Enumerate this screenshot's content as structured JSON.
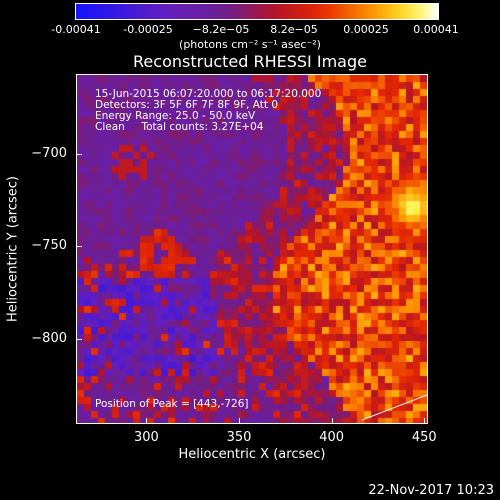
{
  "colorbar": {
    "ticks": [
      "-0.00041",
      "-0.00025",
      "−8.2e−05",
      "8.2e−05",
      "0.00025",
      "0.00041"
    ],
    "unit": "(photons cm⁻² s⁻¹ asec⁻²)"
  },
  "chart_data": {
    "type": "heatmap",
    "title": "Reconstructed RHESSI Image",
    "xlabel": "Heliocentric X (arcsec)",
    "ylabel": "Heliocentric Y (arcsec)",
    "xlim": [
      262,
      452
    ],
    "ylim": [
      -846,
      -657
    ],
    "x_ticks": [
      300,
      350,
      400,
      450
    ],
    "y_ticks": [
      -700,
      -750,
      -800
    ],
    "colormap": "rainbow (blue-purple-red-yellow-white)",
    "value_range": [
      -0.00041,
      0.00041
    ],
    "annotations": [
      "15-Jun-2015 06:07:20.000 to 06:17:20.000",
      "Detectors: 3F 5F 6F 7F 8F 9F, Att 0",
      "Energy Range: 25.0 - 50.0 keV",
      "Clean     Total counts: 3.27E+04",
      "Position of Peak = [443,-726]"
    ],
    "peak": [
      443,
      -726
    ]
  },
  "datestamp": "22-Nov-2017 10:23"
}
